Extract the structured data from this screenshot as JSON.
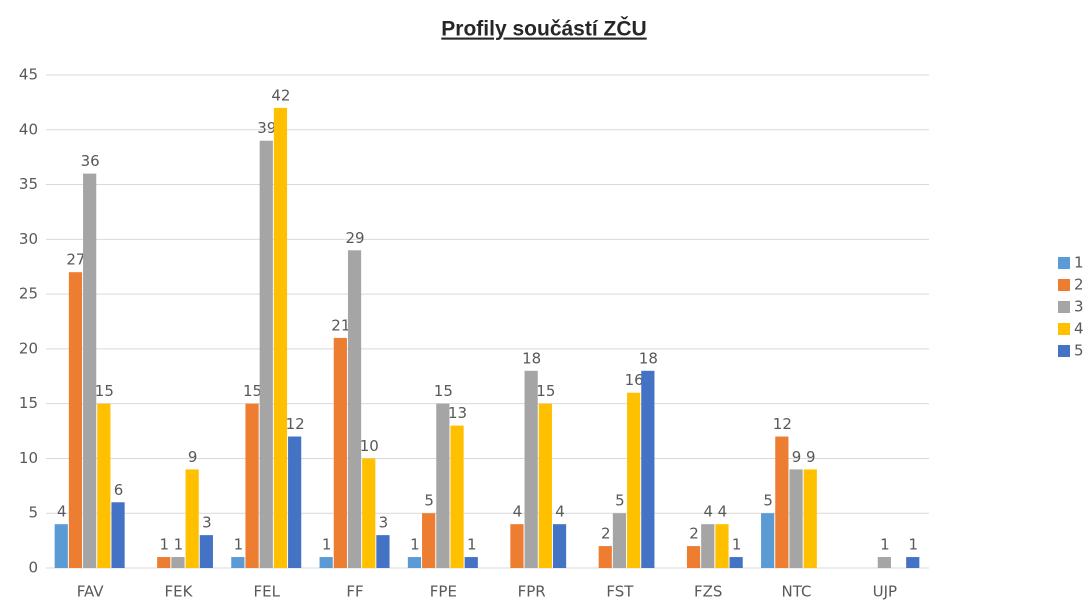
{
  "chart_data": {
    "type": "bar",
    "title": "Profily součástí ZČU",
    "categories": [
      "FAV",
      "FEK",
      "FEL",
      "FF",
      "FPE",
      "FPR",
      "FST",
      "FZS",
      "NTC",
      "UJP"
    ],
    "series": [
      {
        "name": "1",
        "color": "#5b9bd5",
        "values": [
          4,
          null,
          1,
          1,
          1,
          null,
          null,
          null,
          5,
          null
        ]
      },
      {
        "name": "2",
        "color": "#ed7d31",
        "values": [
          27,
          1,
          15,
          21,
          5,
          4,
          2,
          2,
          12,
          null
        ]
      },
      {
        "name": "3",
        "color": "#a5a5a5",
        "values": [
          36,
          1,
          39,
          29,
          15,
          18,
          5,
          4,
          9,
          1
        ]
      },
      {
        "name": "4",
        "color": "#ffc000",
        "values": [
          15,
          9,
          42,
          10,
          13,
          15,
          16,
          4,
          9,
          null
        ]
      },
      {
        "name": "5",
        "color": "#4472c4",
        "values": [
          6,
          3,
          12,
          3,
          1,
          4,
          18,
          1,
          null,
          1
        ]
      }
    ],
    "ylim": [
      0,
      45
    ],
    "yticks": [
      0,
      5,
      10,
      15,
      20,
      25,
      30,
      35,
      40,
      45
    ],
    "grid": true,
    "legend": "right"
  }
}
